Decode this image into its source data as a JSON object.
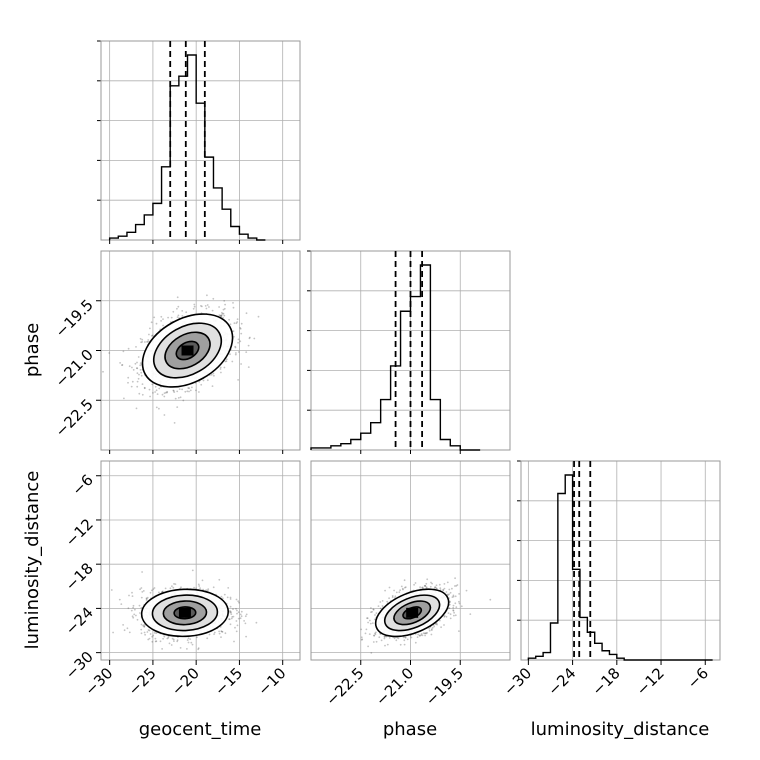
{
  "chart_data": {
    "type": "corner",
    "parameters": [
      "geocent_time",
      "phase",
      "luminosity_distance"
    ],
    "axis_labels": {
      "bottom": [
        "geocent_time",
        "phase",
        "luminosity_distance"
      ],
      "left": [
        "",
        "phase",
        "luminosity_distance"
      ]
    },
    "ranges": {
      "geocent_time": [
        -31,
        -8
      ],
      "phase": [
        -24.0,
        -18.0
      ],
      "luminosity_distance": [
        -31,
        -4
      ]
    },
    "ticks": {
      "geocent_time": [
        -30,
        -25,
        -20,
        -15,
        -10
      ],
      "phase": [
        -22.5,
        -21.0,
        -19.5
      ],
      "luminosity_distance": [
        -30,
        -24,
        -18,
        -12,
        -6
      ]
    },
    "tick_labels": {
      "geocent_time": [
        "−30",
        "−25",
        "−20",
        "−15",
        "−10"
      ],
      "phase": [
        "−22.5",
        "−21.0",
        "−19.5"
      ],
      "luminosity_distance": [
        "−30",
        "−24",
        "−18",
        "−12",
        "−6"
      ]
    },
    "quantiles": {
      "geocent_time": [
        -23.0,
        -21.2,
        -19.0
      ],
      "phase": [
        -21.45,
        -21.0,
        -20.65
      ],
      "luminosity_distance": [
        -23.8,
        -23.1,
        -21.6
      ]
    },
    "histograms": {
      "geocent_time": {
        "bin_edges": [
          -30.0,
          -29.0,
          -28.0,
          -27.0,
          -26.0,
          -25.0,
          -24.0,
          -23.0,
          -22.0,
          -21.0,
          -20.0,
          -19.0,
          -18.0,
          -17.0,
          -16.0,
          -15.0,
          -14.0,
          -13.0,
          -12.0
        ],
        "counts": [
          1,
          2,
          4,
          8,
          13,
          19,
          38,
          80,
          85,
          96,
          71,
          43,
          27,
          16,
          7,
          3,
          1,
          0
        ]
      },
      "phase": {
        "bin_edges": [
          -24.0,
          -23.7,
          -23.4,
          -23.1,
          -22.8,
          -22.5,
          -22.2,
          -21.9,
          -21.6,
          -21.3,
          -21.0,
          -20.7,
          -20.4,
          -20.1,
          -19.8,
          -19.5,
          -19.2,
          -18.9
        ],
        "counts": [
          1,
          1,
          2,
          3,
          5,
          8,
          13,
          24,
          40,
          66,
          73,
          88,
          24,
          5,
          2,
          0,
          0
        ]
      },
      "luminosity_distance": {
        "bin_edges": [
          -30.0,
          -29.0,
          -28.0,
          -27.0,
          -26.0,
          -25.0,
          -24.0,
          -23.0,
          -22.0,
          -21.0,
          -20.0,
          -19.0,
          -18.0,
          -17.0,
          -16.0,
          -15.0,
          -14.0,
          -13.0,
          -12.0,
          -11.0,
          -10.0,
          -9.0,
          -8.0,
          -7.0,
          -6.0,
          -5.0
        ],
        "counts": [
          1,
          2,
          4,
          20,
          90,
          100,
          49,
          23,
          15,
          9,
          5,
          3,
          1,
          0,
          0,
          0,
          0,
          0,
          0,
          0,
          0,
          0,
          0,
          0,
          0
        ]
      }
    },
    "pairs": [
      {
        "x": "geocent_time",
        "y": "phase",
        "peak": [
          -21.0,
          -21.0
        ],
        "spread": [
          2.6,
          0.55
        ],
        "corr": 0.35
      },
      {
        "x": "geocent_time",
        "y": "luminosity_distance",
        "peak": [
          -21.3,
          -24.6
        ],
        "spread": [
          2.5,
          1.6
        ],
        "corr": 0.05
      },
      {
        "x": "phase",
        "y": "luminosity_distance",
        "peak": [
          -20.95,
          -24.6
        ],
        "spread": [
          0.55,
          1.6
        ],
        "corr": 0.45
      }
    ],
    "contour_levels_sigma": [
      0.5,
      1.0,
      1.5,
      2.0
    ],
    "grid": true,
    "colors": {
      "line": "#000000",
      "points": "#555555",
      "frame": "#999999",
      "grid": "#b0b0b0",
      "shade_light": "#dddddd",
      "shade_mid": "#999999",
      "shade_dark": "#555555"
    }
  }
}
